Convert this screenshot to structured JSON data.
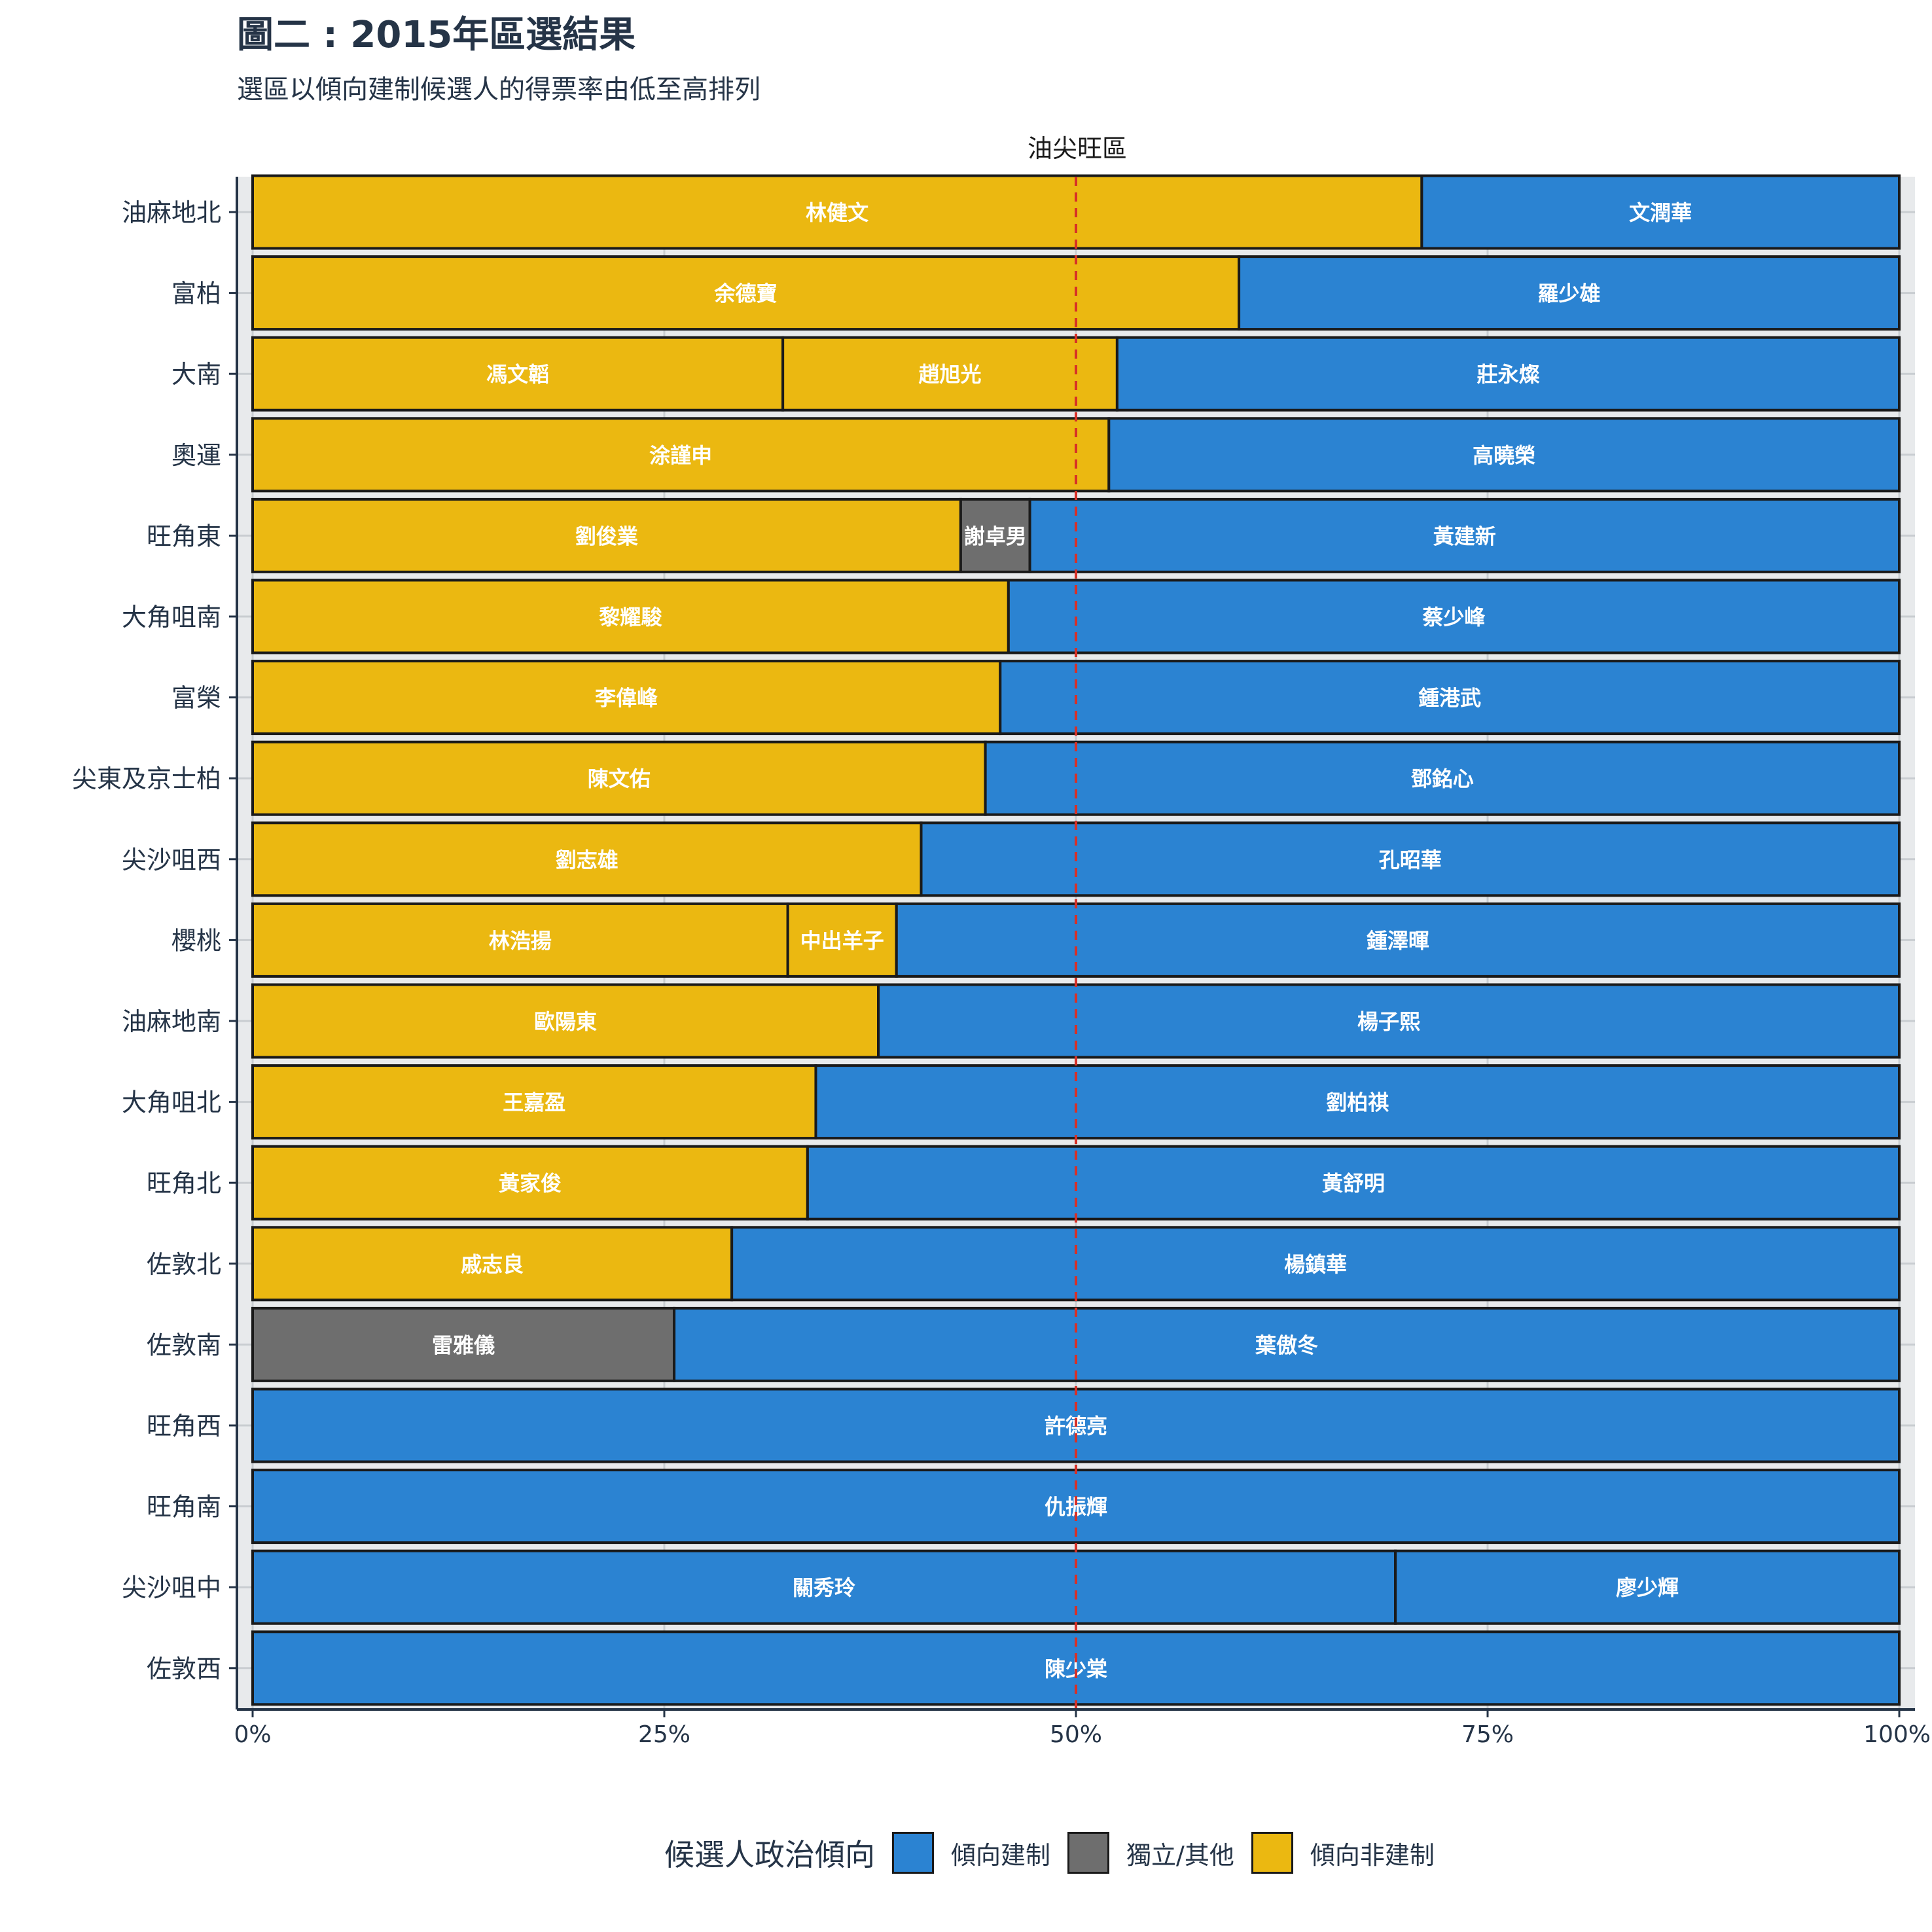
{
  "title": "圖二 : 2015年區選結果",
  "subtitle": "選區以傾向建制候選人的得票率由低至高排列",
  "chart_data": {
    "type": "bar",
    "orientation": "horizontal",
    "stacked": "percent",
    "facet_label": "油尖旺區",
    "xlim": [
      0,
      100
    ],
    "x_ticks": [
      "0%",
      "25%",
      "50%",
      "75%",
      "100%"
    ],
    "x_tick_values": [
      0,
      25,
      50,
      75,
      100
    ],
    "reference_line": {
      "value": 50,
      "style": "dashed",
      "color": "#d73027"
    },
    "legend": {
      "title": "候選人政治傾向",
      "position": "bottom",
      "entries": [
        {
          "key": "establishment",
          "label": "傾向建制",
          "color": "#2b83d2"
        },
        {
          "key": "independent",
          "label": "獨立/其他",
          "color": "#6e6e6e"
        },
        {
          "key": "pro_democracy",
          "label": "傾向非建制",
          "color": "#ebb811"
        }
      ]
    },
    "districts": [
      {
        "name": "油麻地北",
        "segments": [
          {
            "candidate": "林健文",
            "group": "pro_democracy",
            "share": 71.0
          },
          {
            "candidate": "文潤華",
            "group": "establishment",
            "share": 29.0
          }
        ]
      },
      {
        "name": "富柏",
        "segments": [
          {
            "candidate": "余德寶",
            "group": "pro_democracy",
            "share": 59.9
          },
          {
            "candidate": "羅少雄",
            "group": "establishment",
            "share": 40.1
          }
        ]
      },
      {
        "name": "大南",
        "segments": [
          {
            "candidate": "馮文韜",
            "group": "pro_democracy",
            "share": 32.2
          },
          {
            "candidate": "趙旭光",
            "group": "pro_democracy",
            "share": 20.3
          },
          {
            "candidate": "莊永燦",
            "group": "establishment",
            "share": 47.5
          }
        ]
      },
      {
        "name": "奧運",
        "segments": [
          {
            "candidate": "涂謹申",
            "group": "pro_democracy",
            "share": 52.0
          },
          {
            "candidate": "高曉榮",
            "group": "establishment",
            "share": 48.0
          }
        ]
      },
      {
        "name": "旺角東",
        "segments": [
          {
            "candidate": "劉俊業",
            "group": "pro_democracy",
            "share": 43.0
          },
          {
            "candidate": "謝卓男",
            "group": "independent",
            "share": 4.2
          },
          {
            "candidate": "黃建新",
            "group": "establishment",
            "share": 52.8
          }
        ]
      },
      {
        "name": "大角咀南",
        "segments": [
          {
            "candidate": "黎耀駿",
            "group": "pro_democracy",
            "share": 45.9
          },
          {
            "candidate": "蔡少峰",
            "group": "establishment",
            "share": 54.1
          }
        ]
      },
      {
        "name": "富榮",
        "segments": [
          {
            "candidate": "李偉峰",
            "group": "pro_democracy",
            "share": 45.4
          },
          {
            "candidate": "鍾港武",
            "group": "establishment",
            "share": 54.6
          }
        ]
      },
      {
        "name": "尖東及京士柏",
        "segments": [
          {
            "candidate": "陳文佑",
            "group": "pro_democracy",
            "share": 44.5
          },
          {
            "candidate": "鄧銘心",
            "group": "establishment",
            "share": 55.5
          }
        ]
      },
      {
        "name": "尖沙咀西",
        "segments": [
          {
            "candidate": "劉志雄",
            "group": "pro_democracy",
            "share": 40.6
          },
          {
            "candidate": "孔昭華",
            "group": "establishment",
            "share": 59.4
          }
        ]
      },
      {
        "name": "櫻桃",
        "segments": [
          {
            "candidate": "林浩揚",
            "group": "pro_democracy",
            "share": 32.5
          },
          {
            "candidate": "中出羊子",
            "group": "pro_democracy",
            "share": 6.6
          },
          {
            "candidate": "鍾澤暉",
            "group": "establishment",
            "share": 60.9
          }
        ]
      },
      {
        "name": "油麻地南",
        "segments": [
          {
            "candidate": "歐陽東",
            "group": "pro_democracy",
            "share": 38.0
          },
          {
            "candidate": "楊子熙",
            "group": "establishment",
            "share": 62.0
          }
        ]
      },
      {
        "name": "大角咀北",
        "segments": [
          {
            "candidate": "王嘉盈",
            "group": "pro_democracy",
            "share": 34.2
          },
          {
            "candidate": "劉柏祺",
            "group": "establishment",
            "share": 65.8
          }
        ]
      },
      {
        "name": "旺角北",
        "segments": [
          {
            "candidate": "黃家俊",
            "group": "pro_democracy",
            "share": 33.7
          },
          {
            "candidate": "黃舒明",
            "group": "establishment",
            "share": 66.3
          }
        ]
      },
      {
        "name": "佐敦北",
        "segments": [
          {
            "candidate": "戚志良",
            "group": "pro_democracy",
            "share": 29.1
          },
          {
            "candidate": "楊鎮華",
            "group": "establishment",
            "share": 70.9
          }
        ]
      },
      {
        "name": "佐敦南",
        "segments": [
          {
            "candidate": "雷雅儀",
            "group": "independent",
            "share": 25.6
          },
          {
            "candidate": "葉傲冬",
            "group": "establishment",
            "share": 74.4
          }
        ]
      },
      {
        "name": "旺角西",
        "segments": [
          {
            "candidate": "許德亮",
            "group": "establishment",
            "share": 100
          }
        ]
      },
      {
        "name": "旺角南",
        "segments": [
          {
            "candidate": "仇振輝",
            "group": "establishment",
            "share": 100
          }
        ]
      },
      {
        "name": "尖沙咀中",
        "segments": [
          {
            "candidate": "關秀玲",
            "group": "establishment",
            "share": 69.4
          },
          {
            "candidate": "廖少輝",
            "group": "establishment",
            "share": 30.6
          }
        ]
      },
      {
        "name": "佐敦西",
        "segments": [
          {
            "candidate": "陳少棠",
            "group": "establishment",
            "share": 100
          }
        ]
      }
    ]
  }
}
